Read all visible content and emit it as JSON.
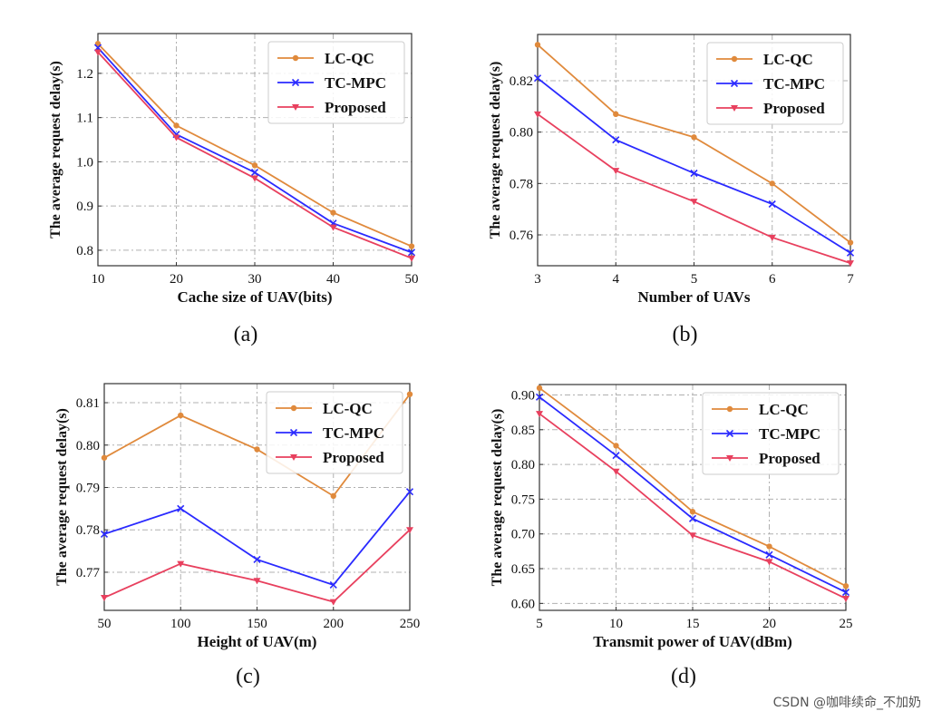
{
  "colors": {
    "LC-QC": "#e08a3c",
    "TC-MPC": "#2a2aff",
    "Proposed": "#e8405e",
    "grid": "#b0b0b0"
  },
  "watermark": "CSDN @咖啡续命_不加奶",
  "chart_data": [
    {
      "type": "line",
      "panel_label": "(a)",
      "xlabel": "Cache size of UAV(bits)",
      "ylabel": "The average request delay(s)",
      "x": [
        10,
        20,
        30,
        40,
        50
      ],
      "xlim": [
        10,
        50
      ],
      "ylim": [
        0.765,
        1.29
      ],
      "xticks": [
        10,
        20,
        30,
        40,
        50
      ],
      "yticks": [
        0.8,
        0.9,
        1.0,
        1.1,
        1.2
      ],
      "ytick_decimals": 1,
      "grid": true,
      "legend": "top-right",
      "series": [
        {
          "name": "LC-QC",
          "marker": "circle",
          "values": [
            1.267,
            1.082,
            0.992,
            0.885,
            0.809
          ]
        },
        {
          "name": "TC-MPC",
          "marker": "x",
          "values": [
            1.258,
            1.062,
            0.976,
            0.861,
            0.795
          ]
        },
        {
          "name": "Proposed",
          "marker": "triangle-down",
          "values": [
            1.248,
            1.055,
            0.963,
            0.852,
            0.782
          ]
        }
      ]
    },
    {
      "type": "line",
      "panel_label": "(b)",
      "xlabel": "Number of UAVs",
      "ylabel": "The average request delay(s)",
      "x": [
        3,
        4,
        5,
        6,
        7
      ],
      "xlim": [
        3,
        7
      ],
      "ylim": [
        0.748,
        0.838
      ],
      "xticks": [
        3,
        4,
        5,
        6,
        7
      ],
      "yticks": [
        0.76,
        0.78,
        0.8,
        0.82
      ],
      "ytick_decimals": 2,
      "grid": true,
      "legend": "top-right",
      "series": [
        {
          "name": "LC-QC",
          "marker": "circle",
          "values": [
            0.834,
            0.807,
            0.798,
            0.78,
            0.757
          ]
        },
        {
          "name": "TC-MPC",
          "marker": "x",
          "values": [
            0.821,
            0.797,
            0.784,
            0.772,
            0.753
          ]
        },
        {
          "name": "Proposed",
          "marker": "triangle-down",
          "values": [
            0.807,
            0.785,
            0.773,
            0.759,
            0.749
          ]
        }
      ]
    },
    {
      "type": "line",
      "panel_label": "(c)",
      "xlabel": "Height of UAV(m)",
      "ylabel": "The average request delay(s)",
      "x": [
        50,
        100,
        150,
        200,
        250
      ],
      "xlim": [
        50,
        250
      ],
      "ylim": [
        0.761,
        0.8145
      ],
      "xticks": [
        50,
        100,
        150,
        200,
        250
      ],
      "yticks": [
        0.77,
        0.78,
        0.79,
        0.8,
        0.81
      ],
      "ytick_decimals": 2,
      "grid": true,
      "legend": "top-right",
      "series": [
        {
          "name": "LC-QC",
          "marker": "circle",
          "values": [
            0.797,
            0.807,
            0.799,
            0.788,
            0.812
          ]
        },
        {
          "name": "TC-MPC",
          "marker": "x",
          "values": [
            0.779,
            0.785,
            0.773,
            0.767,
            0.789
          ]
        },
        {
          "name": "Proposed",
          "marker": "triangle-down",
          "values": [
            0.764,
            0.772,
            0.768,
            0.763,
            0.78
          ]
        }
      ]
    },
    {
      "type": "line",
      "panel_label": "(d)",
      "xlabel": "Transmit power of UAV(dBm)",
      "ylabel": "The average request delay(s)",
      "x": [
        5,
        10,
        15,
        20,
        25
      ],
      "xlim": [
        5,
        25
      ],
      "ylim": [
        0.59,
        0.915
      ],
      "xticks": [
        5,
        10,
        15,
        20,
        25
      ],
      "yticks": [
        0.6,
        0.65,
        0.7,
        0.75,
        0.8,
        0.85,
        0.9
      ],
      "ytick_decimals": 2,
      "grid": true,
      "legend": "top-right",
      "series": [
        {
          "name": "LC-QC",
          "marker": "circle",
          "values": [
            0.91,
            0.827,
            0.732,
            0.682,
            0.625
          ]
        },
        {
          "name": "TC-MPC",
          "marker": "x",
          "values": [
            0.897,
            0.813,
            0.722,
            0.67,
            0.616
          ]
        },
        {
          "name": "Proposed",
          "marker": "triangle-down",
          "values": [
            0.873,
            0.79,
            0.698,
            0.66,
            0.607
          ]
        }
      ]
    }
  ]
}
